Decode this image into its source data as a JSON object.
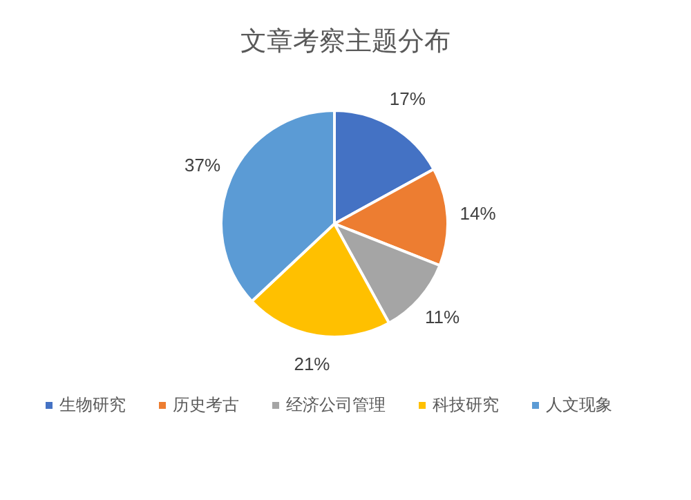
{
  "chart_data": {
    "type": "pie",
    "title": "文章考察主题分布",
    "categories": [
      "生物研究",
      "历史考古",
      "经济公司管理",
      "科技研究",
      "人文现象"
    ],
    "values": [
      17,
      14,
      11,
      21,
      37
    ],
    "colors": [
      "#4472c4",
      "#ed7d31",
      "#a5a5a5",
      "#ffc000",
      "#5b9bd5"
    ],
    "value_labels": [
      "17%",
      "14%",
      "11%",
      "21%",
      "37%"
    ],
    "legend": "bottom"
  }
}
